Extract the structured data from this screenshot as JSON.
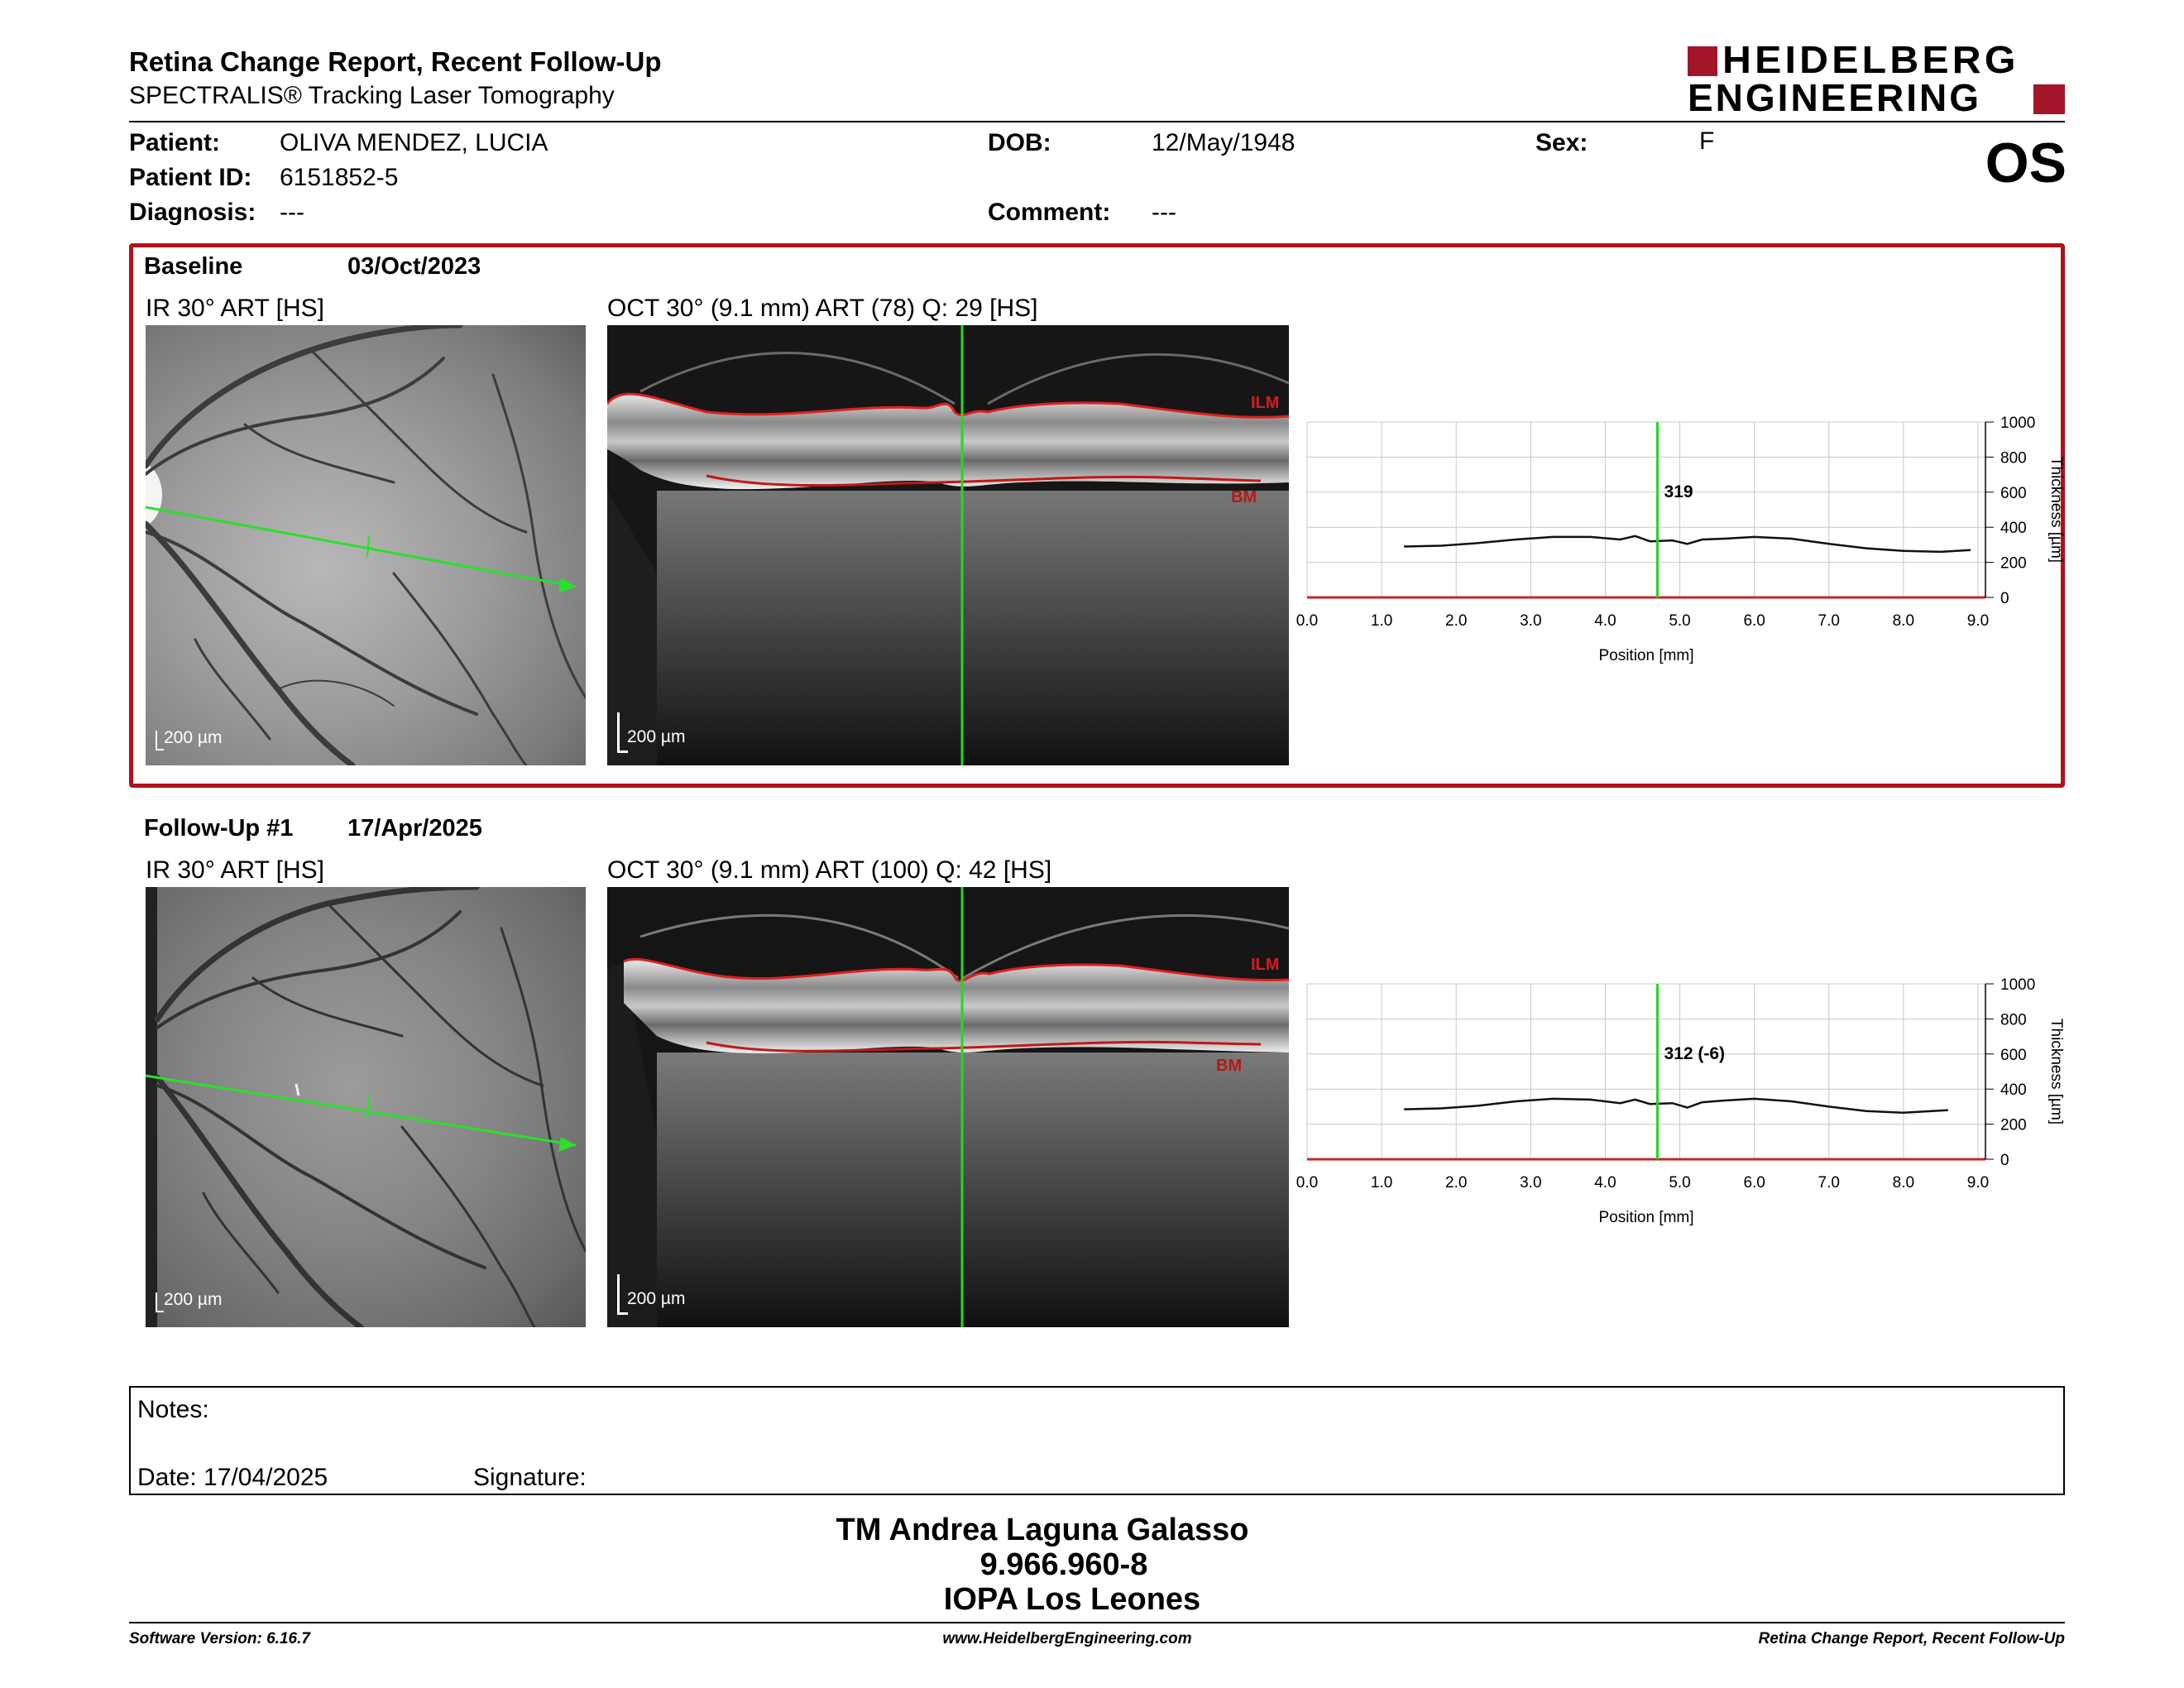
{
  "header": {
    "title": "Retina Change Report, Recent Follow-Up",
    "subtitle": "SPECTRALIS® Tracking Laser Tomography",
    "brand_line1": "HEIDELBERG",
    "brand_line2": "ENGINEERING",
    "brand_color": "#a3162a"
  },
  "patient": {
    "patient_label": "Patient:",
    "patient_value": "OLIVA MENDEZ, LUCIA",
    "id_label": "Patient ID:",
    "id_value": "6151852-5",
    "diagnosis_label": "Diagnosis:",
    "diagnosis_value": "---",
    "dob_label": "DOB:",
    "dob_value": "12/May/1948",
    "comment_label": "Comment:",
    "comment_value": "---",
    "sex_label": "Sex:",
    "sex_value": "F",
    "eye": "OS"
  },
  "baseline": {
    "title": "Baseline",
    "date": "03/Oct/2023",
    "ir_label": "IR 30° ART [HS]",
    "oct_label": "OCT 30° (9.1 mm) ART (78) Q: 29 [HS]",
    "scale_ir": "200 µm",
    "scale_oct": "200 µm",
    "ilm": "ILM",
    "bm": "BM",
    "thickness_label": "319"
  },
  "followup": {
    "title": "Follow-Up #1",
    "date": "17/Apr/2025",
    "ir_label": "IR 30° ART [HS]",
    "oct_label": "OCT 30° (9.1 mm) ART (100) Q: 42 [HS]",
    "scale_ir": "200 µm",
    "scale_oct": "200 µm",
    "ilm": "ILM",
    "bm": "BM",
    "thickness_label": "312 (-6)"
  },
  "chart_data": [
    {
      "type": "line",
      "xlabel": "Position [mm]",
      "ylabel": "Thickness [µm]",
      "xlim": [
        0,
        9.1
      ],
      "ylim": [
        0,
        1000
      ],
      "x_ticks": [
        "0.0",
        "1.0",
        "2.0",
        "3.0",
        "4.0",
        "5.0",
        "6.0",
        "7.0",
        "8.0",
        "9.0"
      ],
      "y_ticks": [
        "0",
        "200",
        "400",
        "600",
        "800",
        "1000"
      ],
      "cursor_x": 4.7,
      "cursor_value": "319",
      "series": [
        {
          "x": [
            1.3,
            1.8,
            2.3,
            2.8,
            3.3,
            3.8,
            4.2,
            4.4,
            4.6,
            4.9,
            5.1,
            5.3,
            5.6,
            6.0,
            6.5,
            7.0,
            7.5,
            8.0,
            8.5,
            8.9
          ],
          "y": [
            290,
            295,
            310,
            330,
            345,
            345,
            330,
            350,
            320,
            325,
            305,
            330,
            335,
            345,
            335,
            305,
            280,
            265,
            260,
            270
          ]
        }
      ]
    },
    {
      "type": "line",
      "xlabel": "Position [mm]",
      "ylabel": "Thickness [µm]",
      "xlim": [
        0,
        9.1
      ],
      "ylim": [
        0,
        1000
      ],
      "x_ticks": [
        "0.0",
        "1.0",
        "2.0",
        "3.0",
        "4.0",
        "5.0",
        "6.0",
        "7.0",
        "8.0",
        "9.0"
      ],
      "y_ticks": [
        "0",
        "200",
        "400",
        "600",
        "800",
        "1000"
      ],
      "cursor_x": 4.7,
      "cursor_value": "312 (-6)",
      "series": [
        {
          "x": [
            1.3,
            1.8,
            2.3,
            2.8,
            3.3,
            3.8,
            4.2,
            4.4,
            4.6,
            4.9,
            5.1,
            5.3,
            5.6,
            6.0,
            6.5,
            7.0,
            7.5,
            8.0,
            8.6
          ],
          "y": [
            285,
            290,
            305,
            330,
            345,
            340,
            320,
            340,
            315,
            320,
            295,
            325,
            335,
            345,
            330,
            300,
            275,
            265,
            280
          ]
        }
      ]
    }
  ],
  "notes": {
    "notes_label": "Notes:",
    "date_label": "Date: 17/04/2025",
    "signature_label": "Signature:"
  },
  "signer": {
    "name": "TM Andrea Laguna Galasso",
    "rut": "9.966.960-8",
    "institution": "IOPA Los Leones"
  },
  "footer": {
    "software": "Software Version: 6.16.7",
    "website": "www.HeidelbergEngineering.com",
    "report": "Retina Change Report, Recent Follow-Up"
  }
}
